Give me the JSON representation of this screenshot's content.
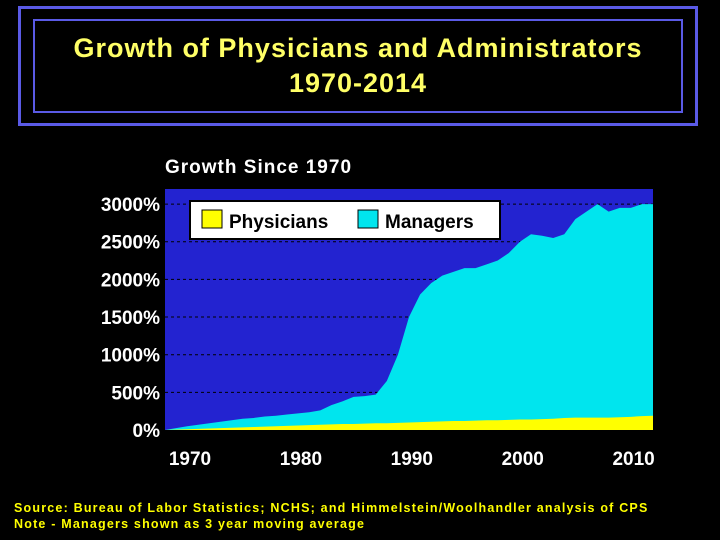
{
  "header": {
    "title_line1": "Growth of Physicians and Administrators",
    "title_line2": "1970-2014"
  },
  "footer": {
    "source": "Source: Bureau of Labor Statistics; NCHS; and Himmelstein/Woolhandler analysis of CPS",
    "note": "Note - Managers shown as 3 year moving average"
  },
  "colors": {
    "background": "#000000",
    "title_text": "#ffff66",
    "title_border": "#5a5ae6",
    "plot_background": "#2323d0",
    "managers": "#00e5ee",
    "physicians": "#ffff00",
    "footer_text": "#ffff00"
  },
  "chart_data": {
    "type": "area",
    "title": "Growth Since 1970",
    "xlabel": "",
    "ylabel": "",
    "xlim": [
      1970,
      2014
    ],
    "ylim": [
      0,
      3200
    ],
    "grid": true,
    "legend_position": "top-left",
    "x_ticks": [
      1970,
      1980,
      1990,
      2000,
      2010
    ],
    "x_tick_labels": [
      "1970",
      "1980",
      "1990",
      "2000",
      "2010"
    ],
    "y_ticks": [
      0,
      500,
      1000,
      1500,
      2000,
      2500,
      3000
    ],
    "y_tick_labels": [
      "0%",
      "500%",
      "1000%",
      "1500%",
      "2000%",
      "2500%",
      "3000%"
    ],
    "x": [
      1970,
      1971,
      1972,
      1973,
      1974,
      1975,
      1976,
      1977,
      1978,
      1979,
      1980,
      1981,
      1982,
      1983,
      1984,
      1985,
      1986,
      1987,
      1988,
      1989,
      1990,
      1991,
      1992,
      1993,
      1994,
      1995,
      1996,
      1997,
      1998,
      1999,
      2000,
      2001,
      2002,
      2003,
      2004,
      2005,
      2006,
      2007,
      2008,
      2009,
      2010,
      2011,
      2012,
      2013,
      2014
    ],
    "series": [
      {
        "name": "Managers",
        "color": "#00e5ee",
        "values": [
          0,
          25,
          50,
          70,
          90,
          110,
          130,
          150,
          160,
          180,
          190,
          205,
          220,
          235,
          260,
          330,
          380,
          440,
          450,
          470,
          650,
          1000,
          1500,
          1800,
          1950,
          2050,
          2100,
          2150,
          2150,
          2200,
          2250,
          2350,
          2500,
          2600,
          2580,
          2550,
          2600,
          2800,
          2900,
          3000,
          2900,
          2950,
          2950,
          3000,
          3000
        ]
      },
      {
        "name": "Physicians",
        "color": "#ffff00",
        "values": [
          0,
          5,
          10,
          15,
          20,
          25,
          30,
          35,
          40,
          45,
          50,
          55,
          60,
          65,
          70,
          75,
          80,
          80,
          85,
          90,
          90,
          95,
          100,
          105,
          110,
          115,
          120,
          120,
          125,
          130,
          130,
          135,
          140,
          140,
          145,
          150,
          160,
          165,
          165,
          165,
          165,
          170,
          175,
          185,
          190
        ]
      }
    ]
  }
}
